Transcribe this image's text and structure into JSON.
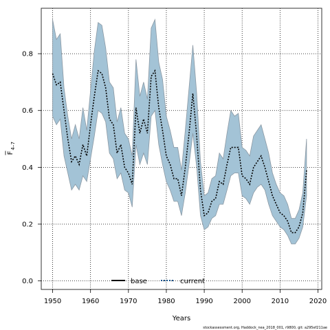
{
  "chart_data": {
    "type": "line",
    "xlabel": "Years",
    "ylabel_main": "F",
    "ylabel_sub": "4–7",
    "xlim": [
      1947,
      2021
    ],
    "ylim": [
      -0.03,
      0.96
    ],
    "xticks": [
      1950,
      1960,
      1970,
      1980,
      1990,
      2000,
      2010,
      2020
    ],
    "yticks": [
      0.0,
      0.2,
      0.4,
      0.6,
      0.8
    ],
    "ytick_labels": [
      "0.0",
      "0.2",
      "0.4",
      "0.6",
      "0.8"
    ],
    "grid": true,
    "legend_placement": "bottom-center",
    "credit": "stockassessment.org, Haddock_nea_2018_001, r9800, git: a295ef211ae",
    "colors": {
      "band": "#a3c3d6",
      "band_edge": "#8b98a3",
      "base": "#000000",
      "current": "#0b4f8a"
    },
    "x": [
      1950,
      1951,
      1952,
      1953,
      1954,
      1955,
      1956,
      1957,
      1958,
      1959,
      1960,
      1961,
      1962,
      1963,
      1964,
      1965,
      1966,
      1967,
      1968,
      1969,
      1970,
      1971,
      1972,
      1973,
      1974,
      1975,
      1976,
      1977,
      1978,
      1979,
      1980,
      1981,
      1982,
      1983,
      1984,
      1985,
      1986,
      1987,
      1988,
      1989,
      1990,
      1991,
      1992,
      1993,
      1994,
      1995,
      1996,
      1997,
      1998,
      1999,
      2000,
      2001,
      2002,
      2003,
      2004,
      2005,
      2006,
      2007,
      2008,
      2009,
      2010,
      2011,
      2012,
      2013,
      2014,
      2015,
      2016,
      2017
    ],
    "series": [
      {
        "name": "base",
        "values": [
          0.73,
          0.69,
          0.7,
          0.6,
          0.5,
          0.42,
          0.44,
          0.41,
          0.48,
          0.44,
          0.55,
          0.65,
          0.74,
          0.73,
          0.68,
          0.57,
          0.55,
          0.45,
          0.48,
          0.4,
          0.38,
          0.34,
          0.61,
          0.52,
          0.57,
          0.52,
          0.72,
          0.74,
          0.61,
          0.53,
          0.44,
          0.41,
          0.36,
          0.36,
          0.3,
          0.4,
          0.52,
          0.66,
          0.51,
          0.32,
          0.23,
          0.24,
          0.28,
          0.29,
          0.35,
          0.34,
          0.41,
          0.47,
          0.47,
          0.47,
          0.37,
          0.36,
          0.34,
          0.4,
          0.42,
          0.44,
          0.4,
          0.35,
          0.3,
          0.27,
          0.24,
          0.23,
          0.21,
          0.17,
          0.17,
          0.19,
          0.24,
          0.39
        ]
      },
      {
        "name": "current",
        "values": [
          0.73,
          0.69,
          0.7,
          0.6,
          0.5,
          0.42,
          0.44,
          0.41,
          0.48,
          0.44,
          0.55,
          0.65,
          0.74,
          0.73,
          0.68,
          0.57,
          0.55,
          0.45,
          0.48,
          0.4,
          0.38,
          0.34,
          0.61,
          0.52,
          0.57,
          0.52,
          0.72,
          0.74,
          0.61,
          0.53,
          0.44,
          0.41,
          0.36,
          0.36,
          0.3,
          0.4,
          0.52,
          0.66,
          0.51,
          0.32,
          0.23,
          0.24,
          0.28,
          0.29,
          0.35,
          0.34,
          0.41,
          0.47,
          0.47,
          0.47,
          0.37,
          0.36,
          0.34,
          0.4,
          0.42,
          0.44,
          0.4,
          0.35,
          0.3,
          0.27,
          0.24,
          0.23,
          0.21,
          0.17,
          0.17,
          0.19,
          0.24,
          0.39
        ]
      }
    ],
    "band_upper": [
      0.92,
      0.85,
      0.87,
      0.68,
      0.58,
      0.5,
      0.55,
      0.5,
      0.61,
      0.53,
      0.67,
      0.81,
      0.91,
      0.9,
      0.82,
      0.7,
      0.68,
      0.56,
      0.61,
      0.52,
      0.5,
      0.44,
      0.78,
      0.65,
      0.7,
      0.64,
      0.89,
      0.92,
      0.77,
      0.71,
      0.58,
      0.53,
      0.47,
      0.47,
      0.39,
      0.53,
      0.68,
      0.83,
      0.66,
      0.42,
      0.3,
      0.31,
      0.36,
      0.37,
      0.45,
      0.43,
      0.52,
      0.6,
      0.58,
      0.59,
      0.47,
      0.46,
      0.44,
      0.51,
      0.53,
      0.55,
      0.5,
      0.45,
      0.38,
      0.34,
      0.31,
      0.3,
      0.27,
      0.22,
      0.22,
      0.25,
      0.31,
      0.5
    ],
    "band_lower": [
      0.58,
      0.55,
      0.57,
      0.44,
      0.38,
      0.32,
      0.34,
      0.32,
      0.37,
      0.35,
      0.43,
      0.51,
      0.6,
      0.59,
      0.56,
      0.45,
      0.43,
      0.36,
      0.38,
      0.32,
      0.31,
      0.26,
      0.48,
      0.41,
      0.45,
      0.41,
      0.58,
      0.6,
      0.48,
      0.41,
      0.35,
      0.32,
      0.28,
      0.28,
      0.23,
      0.31,
      0.41,
      0.52,
      0.4,
      0.23,
      0.18,
      0.19,
      0.22,
      0.23,
      0.27,
      0.27,
      0.32,
      0.37,
      0.38,
      0.38,
      0.3,
      0.29,
      0.27,
      0.31,
      0.33,
      0.34,
      0.32,
      0.27,
      0.23,
      0.21,
      0.19,
      0.18,
      0.16,
      0.13,
      0.13,
      0.15,
      0.19,
      0.3
    ]
  }
}
